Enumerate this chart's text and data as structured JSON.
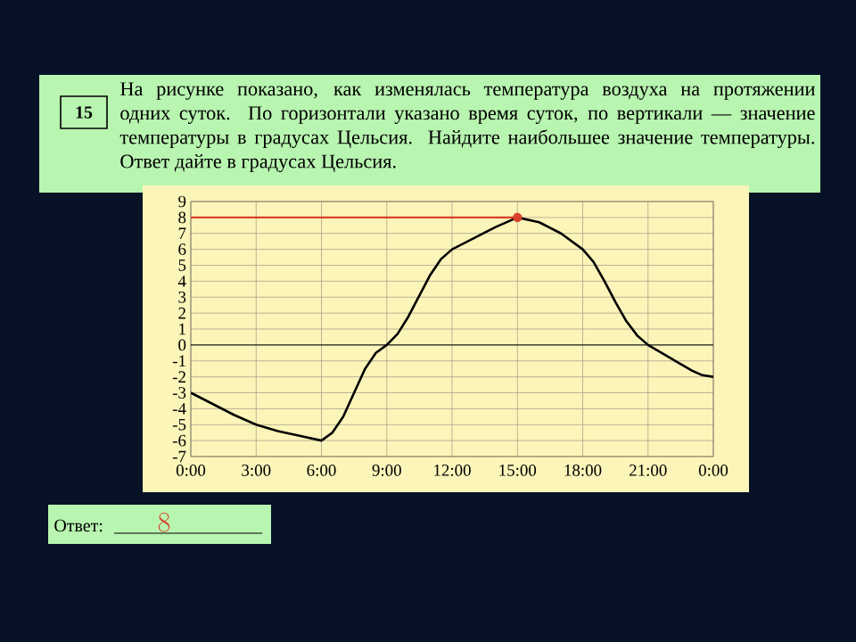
{
  "chart_data": {
    "type": "line",
    "annotations": [
      "15",
      "На рисунке показано, как изменялась температура воздуха на протяжении одних суток. По горизонтали указано время суток, по вертикали — значение температуры в градусах Цельсия. Найдите наибольшее значение температуры. Ответ дайте в градусах Цельсия.",
      "Ответ:",
      "8"
    ],
    "series": [
      {
        "color": "#000000",
        "marker": "none",
        "x": [
          0,
          1,
          2,
          3,
          4,
          5,
          6,
          6.5,
          7,
          7.5,
          8,
          8.5,
          9,
          9.5,
          10,
          10.5,
          11,
          11.5,
          12,
          13,
          14,
          15,
          16,
          17,
          18,
          18.5,
          19,
          19.5,
          20,
          20.5,
          21,
          22,
          23,
          23.5,
          24
        ],
        "values": [
          -3,
          -3.7,
          -4.4,
          -5,
          -5.4,
          -5.7,
          -6,
          -5.5,
          -4.5,
          -3,
          -1.5,
          -0.5,
          0,
          0.7,
          1.8,
          3.1,
          4.4,
          5.4,
          6,
          6.7,
          7.4,
          8,
          7.7,
          7,
          6,
          5.2,
          4,
          2.7,
          1.5,
          0.6,
          0,
          -0.8,
          -1.6,
          -1.9,
          -2
        ]
      },
      {
        "type": "scatter",
        "color": "#d9412b",
        "marker": "circle",
        "x": [
          15
        ],
        "values": [
          8
        ]
      }
    ],
    "xlim": [
      0,
      24
    ],
    "ylim": [
      -7,
      9
    ],
    "xticks": [
      {
        "value": 0,
        "label": "0:00"
      },
      {
        "value": 3,
        "label": "3:00"
      },
      {
        "value": 6,
        "label": "6:00"
      },
      {
        "value": 9,
        "label": "9:00"
      },
      {
        "value": 12,
        "label": "12:00"
      },
      {
        "value": 15,
        "label": "15:00"
      },
      {
        "value": 18,
        "label": "18:00"
      },
      {
        "value": 21,
        "label": "21:00"
      },
      {
        "value": 24,
        "label": "0:00"
      }
    ],
    "yticks": [
      -7,
      -6,
      -5,
      -4,
      -3,
      -2,
      -1,
      0,
      1,
      2,
      3,
      4,
      5,
      6,
      7,
      8,
      9
    ],
    "ref_lines": [
      {
        "axis": "y",
        "value": 8,
        "color": "#d9412b"
      }
    ],
    "grid": true,
    "line_style": "solid"
  }
}
